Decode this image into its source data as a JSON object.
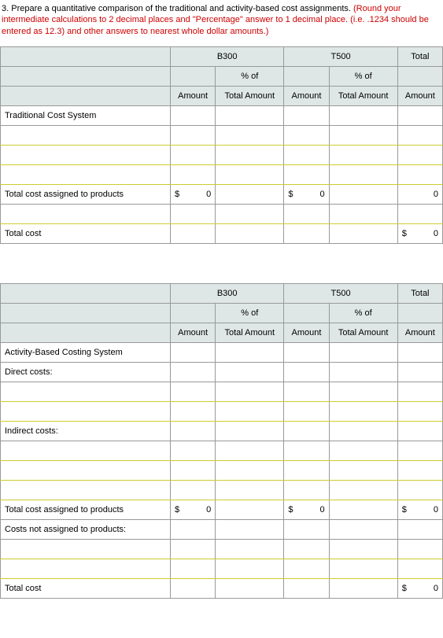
{
  "question_number": "3.",
  "instruction_black": "Prepare a quantitative comparison of the traditional and activity-based cost assignments.",
  "instruction_red": "(Round your intermediate calculations to 2 decimal places and \"Percentage\" answer to 1 decimal place. (i.e. .1234 should be entered as 12.3) and other answers to nearest whole dollar amounts.)",
  "headers": {
    "b300": "B300",
    "t500": "T500",
    "total": "Total",
    "pct_of": "% of",
    "amount": "Amount",
    "total_amount": "Total Amount"
  },
  "table1": {
    "row_labels": {
      "system": "Traditional Cost System",
      "total_assigned": "Total cost assigned to products",
      "total_cost": "Total cost"
    },
    "values": {
      "assigned_b300_amount": "0",
      "assigned_t500_amount": "0",
      "assigned_total_amount": "0",
      "total_cost_total": "0",
      "currency": "$"
    }
  },
  "table2": {
    "row_labels": {
      "system": "Activity-Based Costing System",
      "direct": "Direct costs:",
      "indirect": "Indirect costs:",
      "total_assigned": "Total cost assigned to products",
      "not_assigned": "Costs not assigned to products:",
      "total_cost": "Total cost"
    },
    "values": {
      "assigned_b300_amount": "0",
      "assigned_t500_amount": "0",
      "assigned_total_amount": "0",
      "total_cost_total": "0",
      "currency": "$"
    }
  },
  "colors": {
    "header_bg": "#dfe6e6",
    "border": "#999999",
    "highlight_border": "#cccc33",
    "instruction_red": "#cc0000"
  }
}
